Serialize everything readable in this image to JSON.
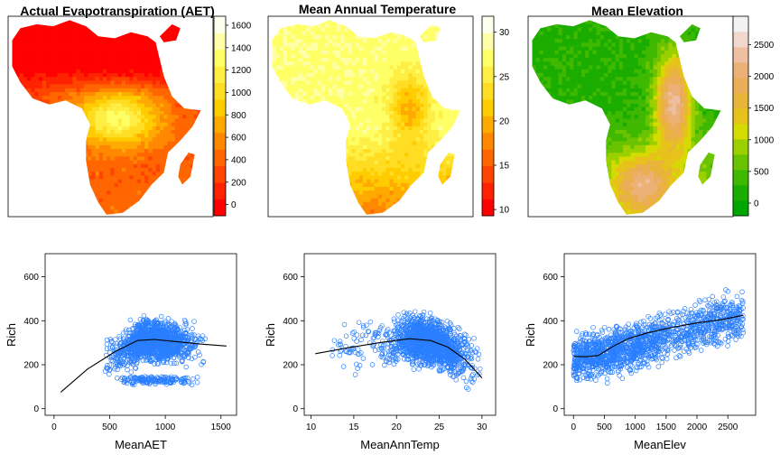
{
  "colors": {
    "point": "#2a7fff",
    "smooth": "#000000",
    "box": "#000000",
    "ramp_heat": [
      "#ff0000",
      "#ff2200",
      "#ff4400",
      "#ff6600",
      "#ff8800",
      "#ffaa00",
      "#ffcc00",
      "#ffdd22",
      "#ffee44",
      "#ffff66",
      "#ffffaa",
      "#ffffee"
    ],
    "ramp_terrain": [
      "#00a600",
      "#1aad00",
      "#3fb800",
      "#6ac300",
      "#9ccf00",
      "#d3db00",
      "#e6c21a",
      "#e9b43a",
      "#ebae56",
      "#ecb176",
      "#eebfa0",
      "#f0d8cc",
      "#f2f2f2"
    ]
  },
  "chart_data": [
    {
      "type": "heatmap",
      "title": "Actual Evapotranspiration (AET)",
      "ramp": "heat",
      "legend_ticks": [
        0,
        200,
        400,
        600,
        800,
        1000,
        1200,
        1400,
        1600
      ],
      "legend_range": [
        -100,
        1680
      ]
    },
    {
      "type": "heatmap",
      "title": "Mean Annual Temperature",
      "ramp": "heat",
      "legend_ticks": [
        10,
        15,
        20,
        25,
        30
      ],
      "legend_range": [
        9.3,
        31.8
      ]
    },
    {
      "type": "heatmap",
      "title": "Mean Elevation",
      "ramp": "terrain",
      "legend_ticks": [
        0,
        500,
        1000,
        1500,
        2000,
        2500
      ],
      "legend_range": [
        -200,
        2950
      ]
    },
    {
      "type": "scatter",
      "xlabel": "MeanAET",
      "ylabel": "Rich",
      "xlim": [
        -80,
        1640
      ],
      "ylim": [
        -30,
        705
      ],
      "xticks": [
        0,
        500,
        1000,
        1500
      ],
      "yticks": [
        0,
        200,
        400,
        600
      ],
      "points": {
        "model": "aet",
        "count": 1500,
        "x_range": [
          30,
          1560
        ],
        "y_range": [
          10,
          670
        ]
      },
      "smooth": [
        [
          60,
          75
        ],
        [
          300,
          180
        ],
        [
          550,
          260
        ],
        [
          750,
          310
        ],
        [
          900,
          315
        ],
        [
          1100,
          305
        ],
        [
          1300,
          295
        ],
        [
          1550,
          285
        ]
      ]
    },
    {
      "type": "scatter",
      "xlabel": "MeanAnnTemp",
      "ylabel": "Rich",
      "xlim": [
        9.2,
        31.6
      ],
      "ylim": [
        -30,
        705
      ],
      "xticks": [
        10,
        15,
        20,
        25,
        30
      ],
      "yticks": [
        0,
        200,
        400,
        600
      ],
      "points": {
        "model": "temp",
        "count": 1500,
        "x_range": [
          10.5,
          30.5
        ],
        "y_range": [
          10,
          670
        ]
      },
      "smooth": [
        [
          10.5,
          250
        ],
        [
          14,
          275
        ],
        [
          18,
          300
        ],
        [
          21.5,
          318
        ],
        [
          24,
          310
        ],
        [
          26,
          280
        ],
        [
          28,
          225
        ],
        [
          30,
          140
        ]
      ]
    },
    {
      "type": "scatter",
      "xlabel": "MeanElev",
      "ylabel": "Rich",
      "xlim": [
        -150,
        2950
      ],
      "ylim": [
        -30,
        705
      ],
      "xticks": [
        0,
        500,
        1000,
        1500,
        2000,
        2500
      ],
      "yticks": [
        0,
        200,
        400,
        600
      ],
      "points": {
        "model": "elev",
        "count": 1500,
        "x_range": [
          0,
          2750
        ],
        "y_range": [
          10,
          670
        ]
      },
      "smooth": [
        [
          0,
          238
        ],
        [
          200,
          236
        ],
        [
          400,
          242
        ],
        [
          650,
          285
        ],
        [
          900,
          320
        ],
        [
          1200,
          345
        ],
        [
          1600,
          370
        ],
        [
          2000,
          390
        ],
        [
          2400,
          405
        ],
        [
          2750,
          425
        ]
      ]
    }
  ]
}
